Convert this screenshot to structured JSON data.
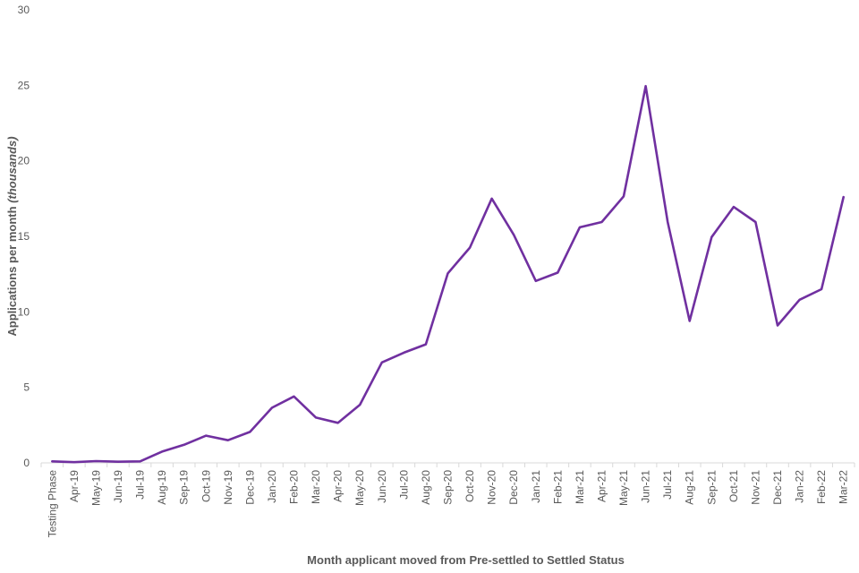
{
  "chart_data": {
    "type": "line",
    "xlabel": "Month applicant moved from Pre-settled to Settled Status",
    "ylabel_main": "Applications per month ",
    "ylabel_italic": "(thousands)",
    "ylim": [
      0,
      30
    ],
    "yticks": [
      0,
      5,
      10,
      15,
      20,
      25,
      30
    ],
    "grid": false,
    "legend": "none",
    "line_color": "#7030a0",
    "categories": [
      "Testing Phase",
      "Apr-19",
      "May-19",
      "Jun-19",
      "Jul-19",
      "Aug-19",
      "Sep-19",
      "Oct-19",
      "Nov-19",
      "Dec-19",
      "Jan-20",
      "Feb-20",
      "Mar-20",
      "Apr-20",
      "May-20",
      "Jun-20",
      "Jul-20",
      "Aug-20",
      "Sep-20",
      "Oct-20",
      "Nov-20",
      "Dec-20",
      "Jan-21",
      "Feb-21",
      "Mar-21",
      "Apr-21",
      "May-21",
      "Jun-21",
      "Jul-21",
      "Aug-21",
      "Sep-21",
      "Oct-21",
      "Nov-21",
      "Dec-21",
      "Jan-22",
      "Feb-22",
      "Mar-22"
    ],
    "values": [
      0.1,
      0.05,
      0.12,
      0.08,
      0.1,
      0.75,
      1.2,
      1.8,
      1.5,
      2.05,
      3.65,
      4.4,
      3.0,
      2.65,
      3.85,
      6.65,
      7.3,
      7.85,
      12.55,
      14.25,
      17.5,
      15.1,
      12.05,
      12.6,
      15.6,
      15.95,
      17.65,
      24.95,
      15.95,
      9.4,
      14.95,
      16.95,
      15.95,
      9.1,
      10.8,
      11.5,
      17.6
    ]
  }
}
